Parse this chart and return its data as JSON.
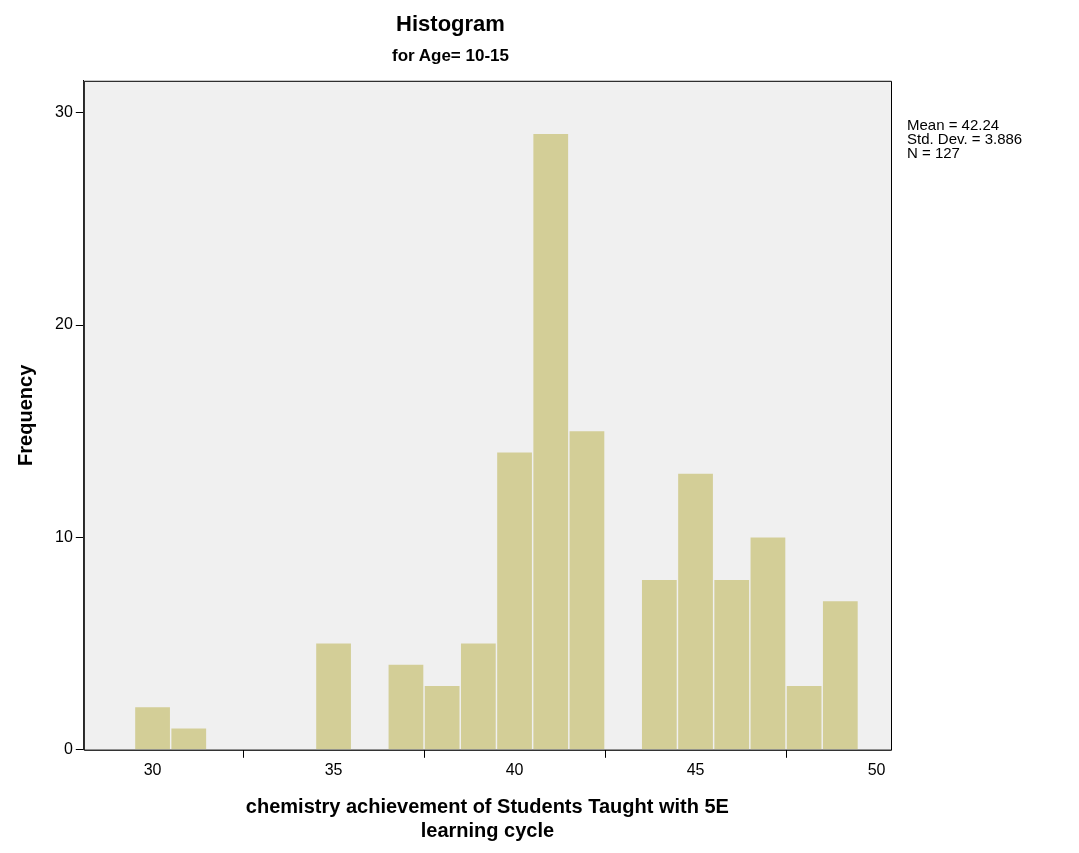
{
  "chart_data": {
    "type": "histogram",
    "title": "Histogram",
    "subtitle": "for Age= 10-15",
    "xlabel": "chemistry achievement of Students Taught with 5E learning cycle",
    "ylabel": "Frequency",
    "bins": [
      29.5,
      30.5,
      31.5,
      32.5,
      33.5,
      34.5,
      35.5,
      36.5,
      37.5,
      38.5,
      39.5,
      40.5,
      41.5,
      42.5,
      43.5,
      44.5,
      45.5,
      46.5,
      47.5,
      48.5,
      49.5
    ],
    "values": [
      2,
      1,
      0,
      0,
      0,
      5,
      0,
      4,
      3,
      5,
      14,
      29,
      15,
      0,
      8,
      13,
      8,
      10,
      3,
      7
    ],
    "color": "#d3ce97",
    "xlim": [
      28.1,
      50.4
    ],
    "xticks": [
      30,
      35,
      40,
      45,
      50
    ],
    "ylim": [
      0,
      31.5
    ],
    "yticks": [
      0,
      10,
      20,
      30
    ],
    "annotations": [
      "Mean = 42.24",
      "Std. Dev. = 3.886",
      "N = 127"
    ]
  }
}
